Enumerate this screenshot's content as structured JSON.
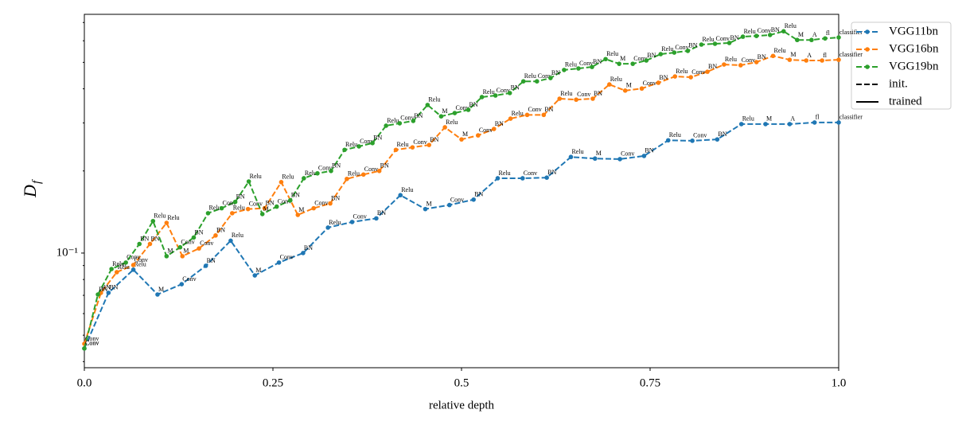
{
  "chart_data": {
    "type": "line",
    "xlabel": "relative depth",
    "ylabel": {
      "main": "D",
      "sub": "f"
    },
    "xlim": [
      0,
      1
    ],
    "xticks": [
      {
        "value": 0,
        "label": "0.0"
      },
      0.25,
      0.5,
      0.75,
      {
        "value": 1,
        "label": "1.0"
      }
    ],
    "ylim": [
      0.038,
      0.75
    ],
    "log_y": true,
    "yticks": [
      {
        "value": 0.1,
        "label": "10⁻¹"
      }
    ],
    "yminorticks": [
      0.04,
      0.05,
      0.06,
      0.07,
      0.08,
      0.09,
      0.2,
      0.3,
      0.4,
      0.5,
      0.6,
      0.7
    ],
    "legend": "upper right outside",
    "line_styles": [
      {
        "name": "init.",
        "dashed": true
      },
      {
        "name": "trained",
        "dashed": false
      }
    ],
    "series": [
      {
        "name": "VGG11bn",
        "color": "#1f77b4",
        "dashed": true,
        "x": [
          0,
          0.032,
          0.065,
          0.097,
          0.129,
          0.161,
          0.194,
          0.226,
          0.258,
          0.29,
          0.323,
          0.355,
          0.387,
          0.419,
          0.452,
          0.484,
          0.516,
          0.548,
          0.581,
          0.613,
          0.645,
          0.677,
          0.71,
          0.742,
          0.774,
          0.806,
          0.839,
          0.871,
          0.903,
          0.935,
          0.968,
          1
        ],
        "values": [
          0.0447,
          0.0715,
          0.0869,
          0.0705,
          0.0769,
          0.0898,
          0.111,
          0.0828,
          0.0923,
          0.1,
          0.124,
          0.13,
          0.134,
          0.163,
          0.145,
          0.15,
          0.157,
          0.188,
          0.188,
          0.189,
          0.225,
          0.222,
          0.221,
          0.227,
          0.259,
          0.258,
          0.261,
          0.297,
          0.297,
          0.297,
          0.301,
          0.301
        ],
        "point_labels": [
          "Conv",
          "BN",
          "Relu",
          "M",
          "Conv",
          "BN",
          "Relu",
          "M",
          "Conv",
          "BN",
          "Relu",
          "Conv",
          "BN",
          "Relu",
          "M",
          "Conv",
          "BN",
          "Relu",
          "Conv",
          "BN",
          "Relu",
          "M",
          "Conv",
          "BN",
          "Relu",
          "Conv",
          "BN",
          "Relu",
          "M",
          "A",
          "fl",
          "classifier"
        ]
      },
      {
        "name": "VGG16bn",
        "color": "#ff7f0e",
        "dashed": true,
        "x": [
          0,
          0.022,
          0.043,
          0.065,
          0.087,
          0.109,
          0.13,
          0.152,
          0.174,
          0.196,
          0.217,
          0.239,
          0.261,
          0.283,
          0.304,
          0.326,
          0.348,
          0.37,
          0.391,
          0.413,
          0.435,
          0.457,
          0.478,
          0.5,
          0.522,
          0.543,
          0.565,
          0.587,
          0.609,
          0.63,
          0.652,
          0.674,
          0.696,
          0.717,
          0.739,
          0.761,
          0.783,
          0.804,
          0.826,
          0.848,
          0.87,
          0.891,
          0.913,
          0.935,
          0.957,
          0.978,
          1
        ],
        "values": [
          0.0465,
          0.0715,
          0.0851,
          0.0904,
          0.108,
          0.129,
          0.0974,
          0.104,
          0.116,
          0.14,
          0.145,
          0.146,
          0.182,
          0.138,
          0.146,
          0.152,
          0.187,
          0.194,
          0.2,
          0.239,
          0.244,
          0.249,
          0.289,
          0.261,
          0.27,
          0.285,
          0.311,
          0.321,
          0.321,
          0.368,
          0.365,
          0.368,
          0.415,
          0.394,
          0.401,
          0.421,
          0.444,
          0.441,
          0.462,
          0.491,
          0.488,
          0.501,
          0.528,
          0.511,
          0.508,
          0.508,
          0.511
        ],
        "point_labels": [
          "Conv",
          "BN",
          "Relu",
          "Conv",
          "BN",
          "Relu",
          "M",
          "Conv",
          "BN",
          "Relu",
          "Conv",
          "BN",
          "Relu",
          "M",
          "Conv",
          "BN",
          "Relu",
          "Conv",
          "BN",
          "Relu",
          "Conv",
          "BN",
          "Relu",
          "M",
          "Conv",
          "BN",
          "Relu",
          "Conv",
          "BN",
          "Relu",
          "Conv",
          "BN",
          "Relu",
          "M",
          "Conv",
          "BN",
          "Relu",
          "Conv",
          "BN",
          "Relu",
          "Conv",
          "BN",
          "Relu",
          "M",
          "A",
          "fl",
          "classifier"
        ]
      },
      {
        "name": "VGG19bn",
        "color": "#2ca02c",
        "dashed": true,
        "x": [
          0,
          0.018,
          0.036,
          0.055,
          0.073,
          0.091,
          0.109,
          0.127,
          0.145,
          0.164,
          0.182,
          0.2,
          0.218,
          0.236,
          0.255,
          0.273,
          0.291,
          0.309,
          0.327,
          0.345,
          0.364,
          0.382,
          0.4,
          0.418,
          0.436,
          0.455,
          0.473,
          0.491,
          0.509,
          0.527,
          0.545,
          0.564,
          0.582,
          0.6,
          0.618,
          0.636,
          0.655,
          0.673,
          0.691,
          0.709,
          0.727,
          0.745,
          0.764,
          0.782,
          0.8,
          0.818,
          0.836,
          0.855,
          0.873,
          0.891,
          0.909,
          0.927,
          0.945,
          0.964,
          0.982,
          1
        ],
        "values": [
          0.0447,
          0.0705,
          0.0874,
          0.0923,
          0.108,
          0.131,
          0.0974,
          0.105,
          0.114,
          0.14,
          0.146,
          0.154,
          0.183,
          0.139,
          0.148,
          0.156,
          0.188,
          0.196,
          0.2,
          0.239,
          0.246,
          0.253,
          0.293,
          0.299,
          0.305,
          0.349,
          0.317,
          0.326,
          0.335,
          0.373,
          0.378,
          0.386,
          0.426,
          0.426,
          0.438,
          0.469,
          0.475,
          0.481,
          0.514,
          0.494,
          0.494,
          0.508,
          0.536,
          0.543,
          0.551,
          0.581,
          0.585,
          0.589,
          0.621,
          0.625,
          0.63,
          0.65,
          0.604,
          0.604,
          0.612,
          0.617
        ],
        "point_labels": [
          "Conv",
          "BN",
          "Relu",
          "Conv",
          "BN",
          "Relu",
          "M",
          "Conv",
          "BN",
          "Relu",
          "Conv",
          "BN",
          "Relu",
          "M",
          "Conv",
          "BN",
          "Relu",
          "Conv",
          "BN",
          "Relu",
          "Conv",
          "BN",
          "Relu",
          "Conv",
          "BN",
          "Relu",
          "M",
          "Conv",
          "BN",
          "Relu",
          "Conv",
          "BN",
          "Relu",
          "Conv",
          "BN",
          "Relu",
          "Conv",
          "BN",
          "Relu",
          "M",
          "Conv",
          "BN",
          "Relu",
          "Conv",
          "BN",
          "Relu",
          "Conv",
          "BN",
          "Relu",
          "Conv",
          "BN",
          "Relu",
          "M",
          "A",
          "fl",
          "classifier"
        ]
      }
    ]
  }
}
